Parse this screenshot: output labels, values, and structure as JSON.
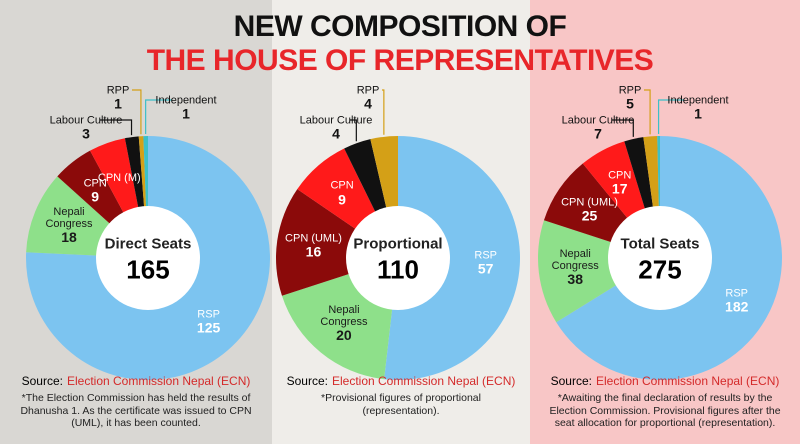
{
  "header": {
    "line1": "NEW COMPOSITION OF",
    "line2": "THE HOUSE OF REPRESENTATIVES"
  },
  "chart_data": [
    {
      "type": "pie",
      "donut": true,
      "center_label": "Direct Seats",
      "total": 165,
      "categories": [
        "RSP",
        "Nepali Congress",
        "CPN",
        "CPN (M)",
        "Labour Culture",
        "RPP",
        "Independent"
      ],
      "values": [
        125,
        18,
        9,
        8,
        3,
        1,
        1
      ],
      "value_labels": [
        "125",
        "18",
        "9",
        null,
        "3",
        "1",
        "1"
      ],
      "colors": [
        "#7cc4f0",
        "#8ee08a",
        "#8b0a0a",
        "#ff1a1a",
        "#111111",
        "#d4a017",
        "#3cc0c8"
      ],
      "source_label": "Source:",
      "source": "Election Commission Nepal (ECN)",
      "note": "*The Election Commission has held the results of Dhanusha 1. As the certificate was issued to CPN (UML), it has been counted."
    },
    {
      "type": "pie",
      "donut": true,
      "center_label": "Proportional",
      "total": 110,
      "categories": [
        "RSP",
        "Nepali Congress",
        "CPN (UML)",
        "CPN",
        "Labour Culture",
        "RPP"
      ],
      "values": [
        57,
        20,
        16,
        9,
        4,
        4
      ],
      "colors": [
        "#7cc4f0",
        "#8ee08a",
        "#8b0a0a",
        "#ff1a1a",
        "#111111",
        "#d4a017"
      ],
      "source_label": "Source:",
      "source": "Election Commission Nepal (ECN)",
      "note": "*Provisional figures of proportional (representation)."
    },
    {
      "type": "pie",
      "donut": true,
      "center_label": "Total Seats",
      "total": 275,
      "categories": [
        "RSP",
        "Nepali Congress",
        "CPN (UML)",
        "CPN",
        "Labour Culture",
        "RPP",
        "Independent"
      ],
      "values": [
        182,
        38,
        25,
        17,
        7,
        5,
        1
      ],
      "colors": [
        "#7cc4f0",
        "#8ee08a",
        "#8b0a0a",
        "#ff1a1a",
        "#111111",
        "#d4a017",
        "#3cc0c8"
      ],
      "source_label": "Source:",
      "source": "Election Commission Nepal (ECN)",
      "note": "*Awaiting the final declaration of results by the Election Commission. Provisional figures after the seat allocation for proportional (representation)."
    }
  ]
}
